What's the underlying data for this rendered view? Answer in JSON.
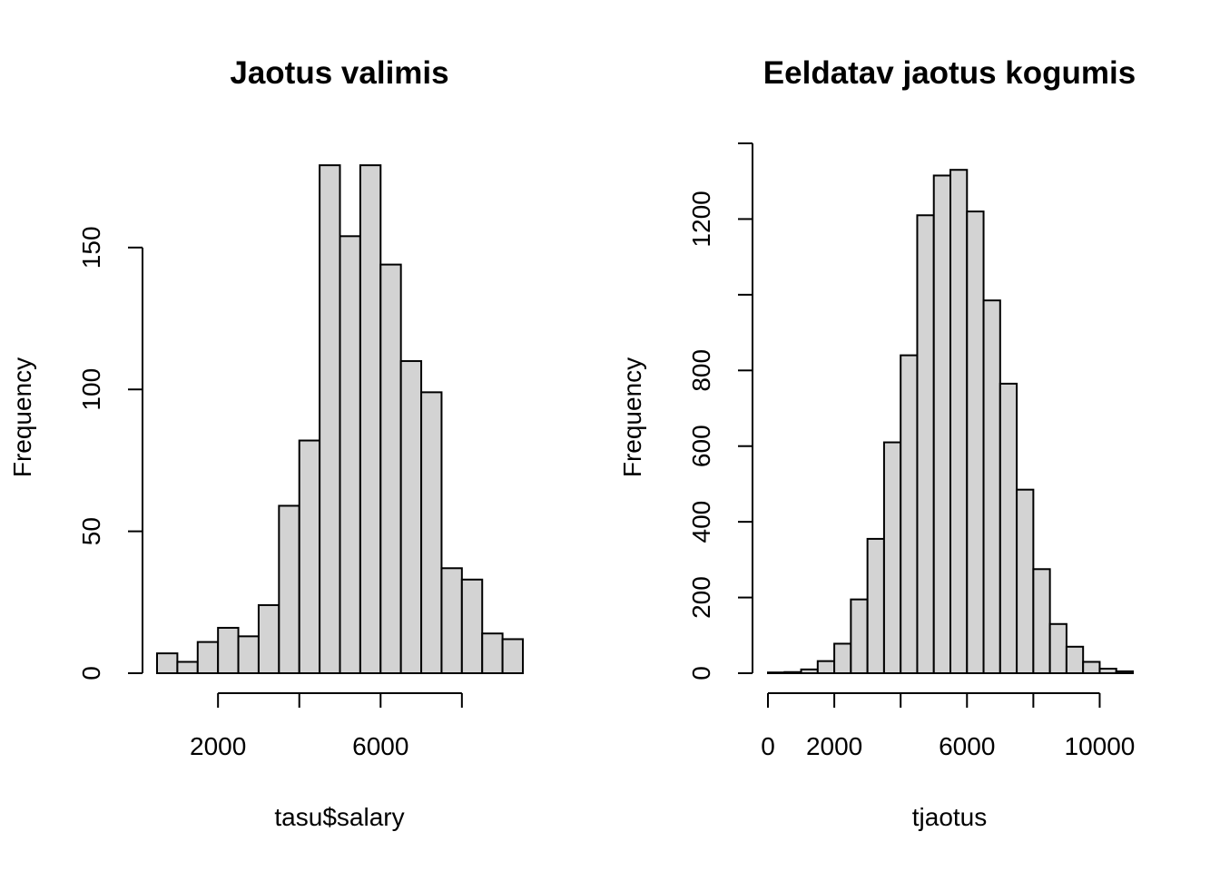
{
  "chart_data": [
    {
      "type": "bar",
      "title": "Jaotus valimis",
      "xlabel": "tasu$salary",
      "ylabel": "Frequency",
      "bin_width": 500,
      "bins_start": 500,
      "values": [
        7,
        4,
        11,
        16,
        13,
        24,
        59,
        82,
        179,
        154,
        179,
        144,
        110,
        99,
        37,
        33,
        14,
        12
      ],
      "xlim": [
        500,
        9500
      ],
      "ylim": [
        0,
        180
      ],
      "x_ticks": [
        2000,
        4000,
        6000,
        8000
      ],
      "x_tick_labels": [
        "2000",
        "",
        "6000",
        ""
      ],
      "y_ticks": [
        0,
        50,
        100,
        150
      ],
      "y_tick_labels": [
        "0",
        "50",
        "100",
        "150"
      ],
      "bar_color": "#d3d3d3",
      "grid": false
    },
    {
      "type": "bar",
      "title": "Eeldatav jaotus kogumis",
      "xlabel": "tjaotus",
      "ylabel": "Frequency",
      "bin_width": 500,
      "bins_start": 0,
      "values": [
        2,
        3,
        10,
        32,
        78,
        195,
        355,
        610,
        840,
        1210,
        1315,
        1330,
        1220,
        985,
        765,
        485,
        275,
        130,
        70,
        30,
        12,
        5
      ],
      "xlim": [
        0,
        11000
      ],
      "ylim": [
        0,
        1400
      ],
      "x_ticks": [
        0,
        2000,
        4000,
        6000,
        8000,
        10000
      ],
      "x_tick_labels": [
        "0",
        "2000",
        "",
        "6000",
        "",
        "10000"
      ],
      "y_ticks": [
        0,
        200,
        400,
        600,
        800,
        1000,
        1200,
        1400
      ],
      "y_tick_labels": [
        "0",
        "200",
        "400",
        "600",
        "800",
        "",
        "1200",
        ""
      ],
      "bar_color": "#d3d3d3",
      "grid": false
    }
  ]
}
